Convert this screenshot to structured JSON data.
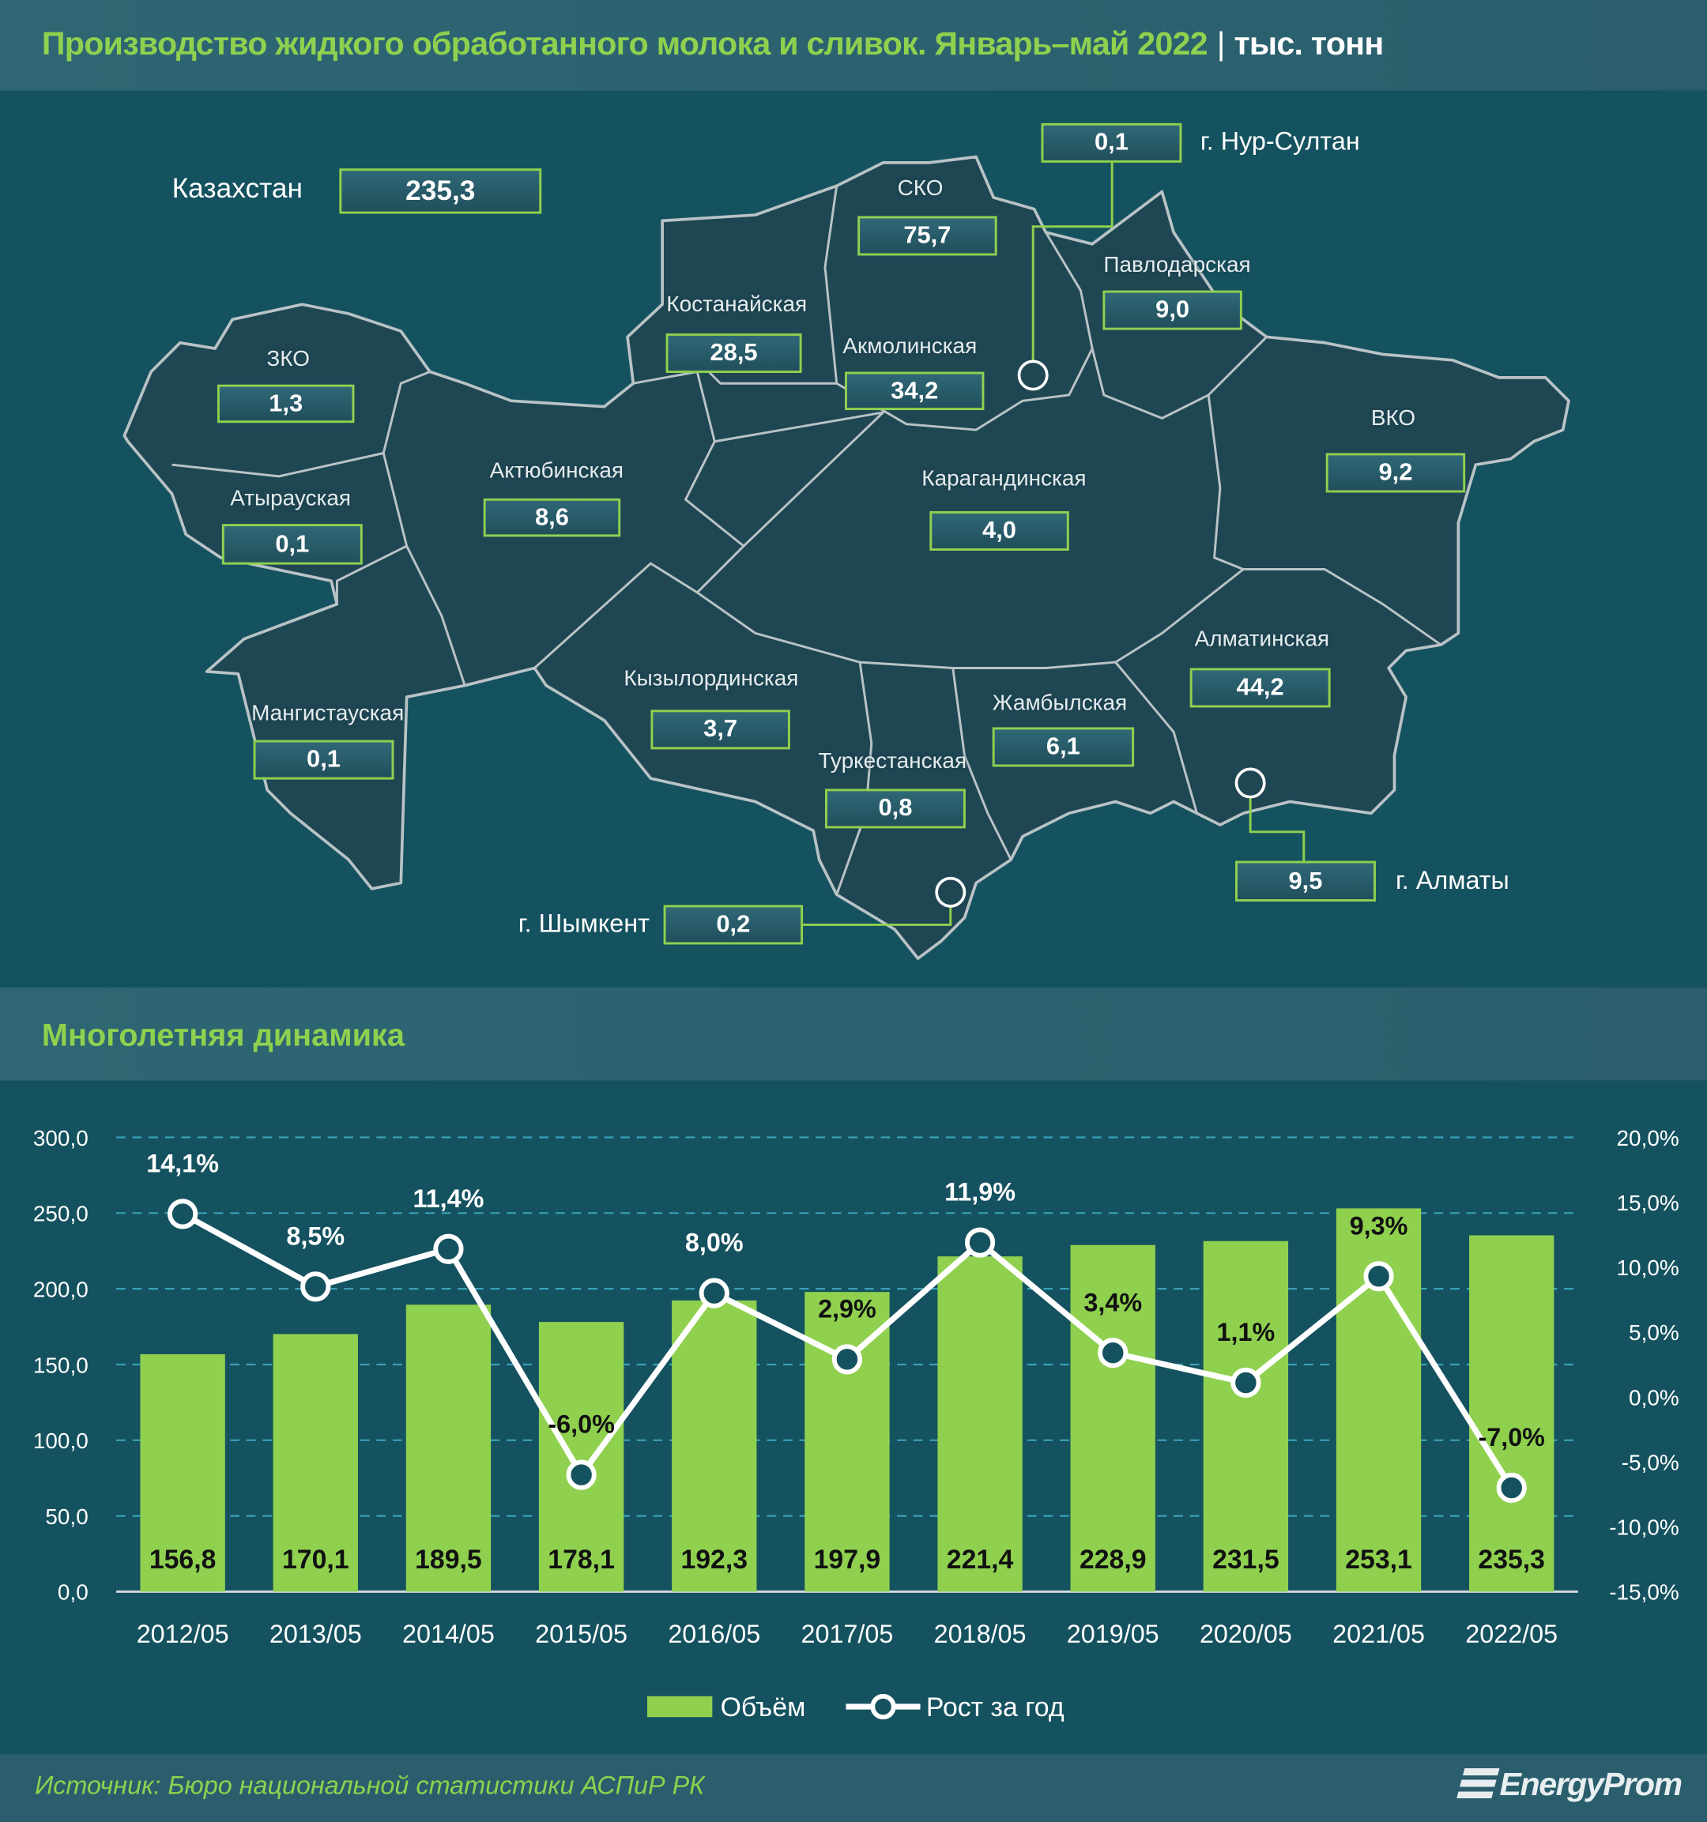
{
  "header": {
    "title": "Производство жидкого обработанного молока и сливок. Январь–май 2022",
    "separator": "|",
    "unit": "тыс. тонн"
  },
  "map": {
    "total": {
      "name": "Казахстан",
      "value": "235,3"
    },
    "regions": [
      {
        "name": "г. Нур-Султан",
        "value": "0,1"
      },
      {
        "name": "СКО",
        "value": "75,7"
      },
      {
        "name": "Павлодарская",
        "value": "9,0"
      },
      {
        "name": "Костанайская",
        "value": "28,5"
      },
      {
        "name": "Акмолинская",
        "value": "34,2"
      },
      {
        "name": "ЗКО",
        "value": "1,3"
      },
      {
        "name": "ВКО",
        "value": "9,2"
      },
      {
        "name": "Актюбинская",
        "value": "8,6"
      },
      {
        "name": "Карагандинская",
        "value": "4,0"
      },
      {
        "name": "Атырауская",
        "value": "0,1"
      },
      {
        "name": "Алматинская",
        "value": "44,2"
      },
      {
        "name": "Кызылординская",
        "value": "3,7"
      },
      {
        "name": "Мангистауская",
        "value": "0,1"
      },
      {
        "name": "Жамбылская",
        "value": "6,1"
      },
      {
        "name": "Туркестанская",
        "value": "0,8"
      },
      {
        "name": "г. Алматы",
        "value": "9,5"
      },
      {
        "name": "г. Шымкент",
        "value": "0,2"
      }
    ]
  },
  "section2": {
    "title": "Многолетняя динамика"
  },
  "chart_data": {
    "type": "bar+line",
    "categories": [
      "2012/05",
      "2013/05",
      "2014/05",
      "2015/05",
      "2016/05",
      "2017/05",
      "2018/05",
      "2019/05",
      "2020/05",
      "2021/05",
      "2022/05"
    ],
    "series": [
      {
        "name": "Объём",
        "type": "bar",
        "axis": "left",
        "color": "#8fd14f",
        "values": [
          156.8,
          170.1,
          189.5,
          178.1,
          192.3,
          197.9,
          221.4,
          228.9,
          231.5,
          253.1,
          235.3
        ],
        "labels": [
          "156,8",
          "170,1",
          "189,5",
          "178,1",
          "192,3",
          "197,9",
          "221,4",
          "228,9",
          "231,5",
          "253,1",
          "235,3"
        ]
      },
      {
        "name": "Рост за год",
        "type": "line",
        "axis": "right",
        "color": "#ffffff",
        "values": [
          14.1,
          8.5,
          11.4,
          -6.0,
          8.0,
          2.9,
          11.9,
          3.4,
          1.1,
          9.3,
          -7.0
        ],
        "labels": [
          "14,1%",
          "8,5%",
          "11,4%",
          "-6,0%",
          "8,0%",
          "2,9%",
          "11,9%",
          "3,4%",
          "1,1%",
          "9,3%",
          "-7,0%"
        ]
      }
    ],
    "ylim": [
      0,
      300
    ],
    "y2lim": [
      -15,
      20
    ],
    "yticks": [
      "0,0",
      "50,0",
      "100,0",
      "150,0",
      "200,0",
      "250,0",
      "300,0"
    ],
    "y2ticks": [
      "-15,0%",
      "-10,0%",
      "-5,0%",
      "0,0%",
      "5,0%",
      "10,0%",
      "15,0%",
      "20,0%"
    ],
    "grid": true,
    "legend": "bottom"
  },
  "footer": {
    "source": "Источник: Бюро национальной статистики АСПиР РК",
    "logo": "EnergyProm"
  }
}
